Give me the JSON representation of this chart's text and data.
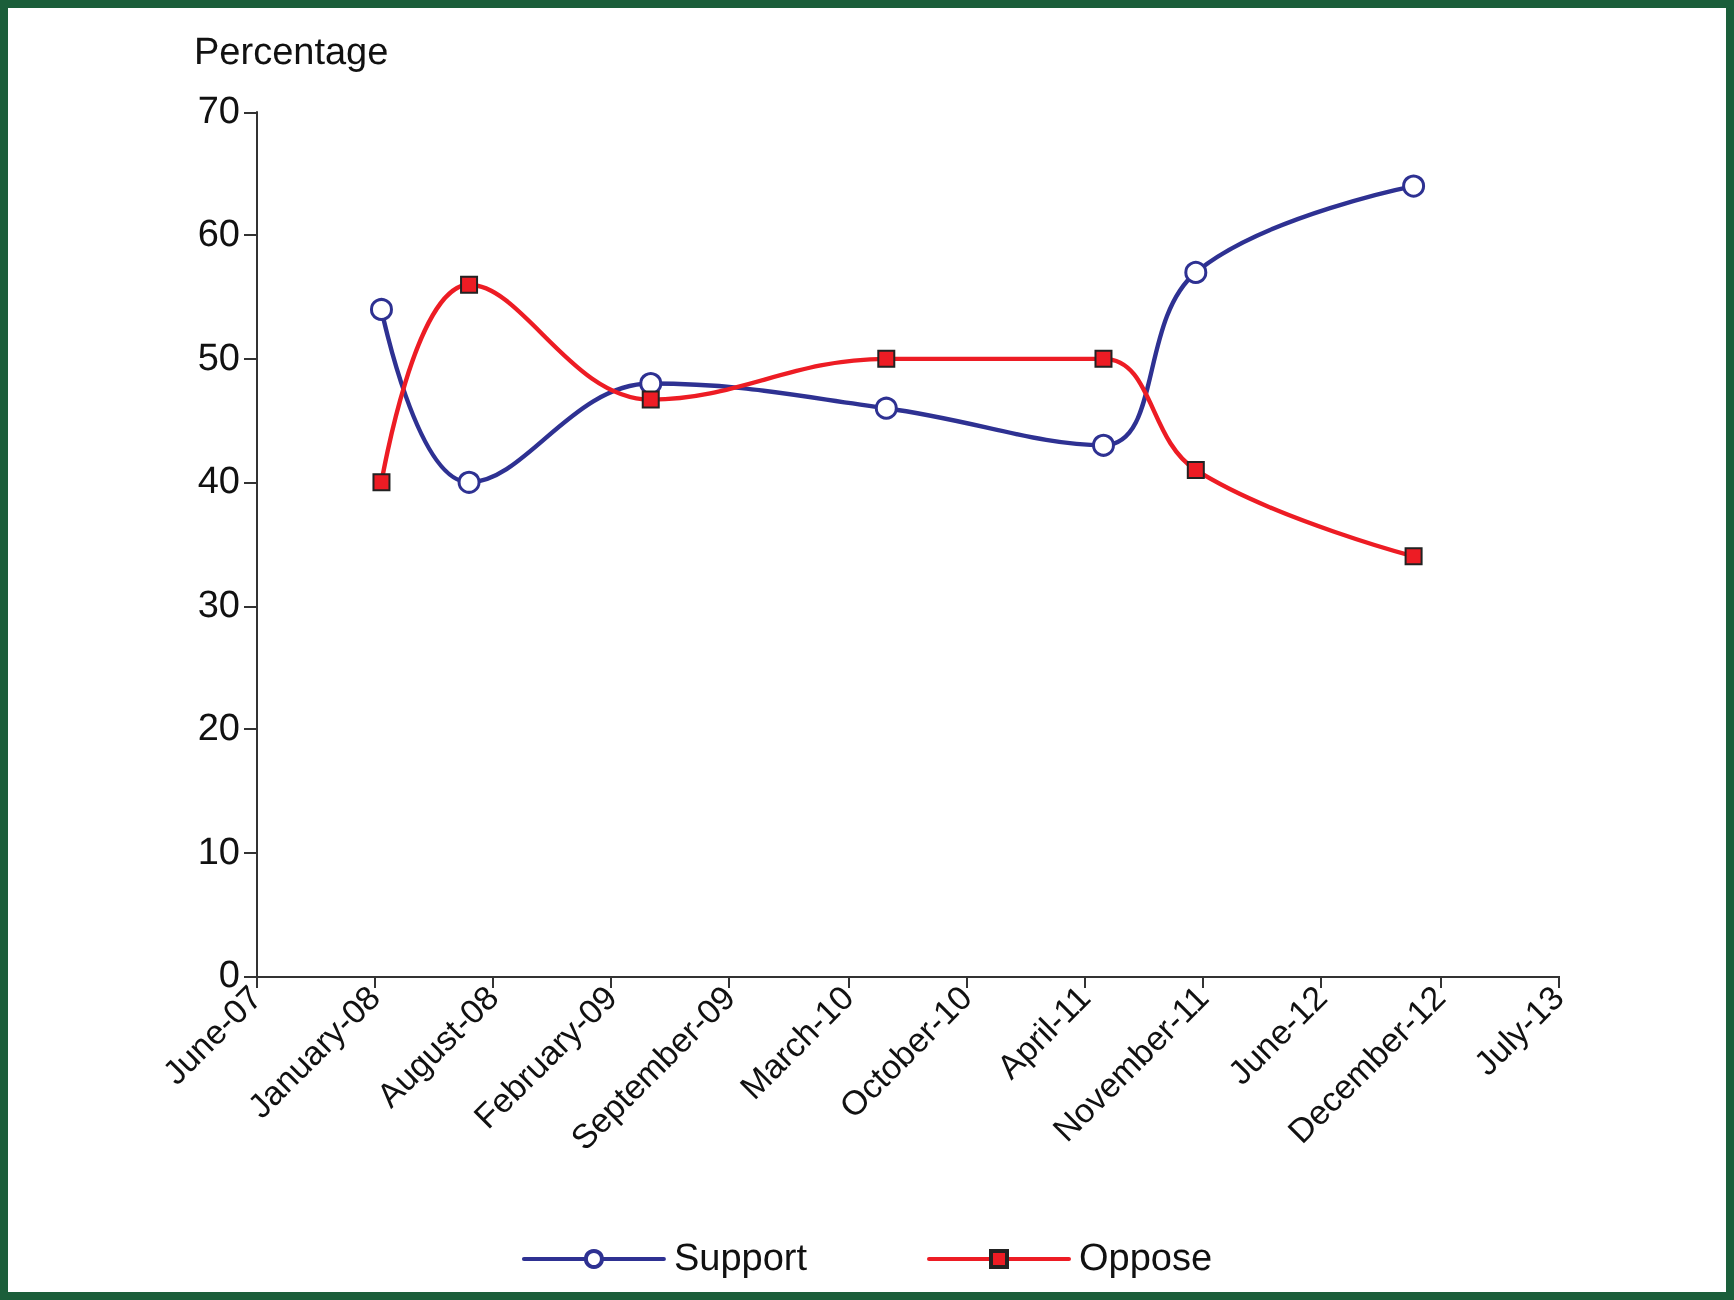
{
  "chart_data": {
    "type": "line",
    "ylabel": "Percentage",
    "x": [
      "2008-01-26",
      "2008-06-22",
      "2009-04-25",
      "2010-05-28",
      "2011-05-30",
      "2011-11-02",
      "2012-11-04"
    ],
    "series": [
      {
        "name": "Support",
        "color": "#2e3192",
        "marker": "circle",
        "values": [
          54,
          40,
          48,
          46,
          43,
          57,
          64
        ]
      },
      {
        "name": "Oppose",
        "color": "#ed1c24",
        "marker": "square",
        "values": [
          40,
          56,
          46.7,
          50,
          50,
          41,
          34
        ]
      }
    ],
    "xlim": [
      "2007-06-28",
      "2013-07-06"
    ],
    "xticks": [
      {
        "value": "2007-06-28",
        "label": "June-07"
      },
      {
        "value": "2008-01-14",
        "label": "January-08"
      },
      {
        "value": "2008-08-01",
        "label": "August-08"
      },
      {
        "value": "2009-02-17",
        "label": "February-09"
      },
      {
        "value": "2009-09-05",
        "label": "September-09"
      },
      {
        "value": "2010-03-24",
        "label": "March-10"
      },
      {
        "value": "2010-10-10",
        "label": "October-10"
      },
      {
        "value": "2011-04-28",
        "label": "April-11"
      },
      {
        "value": "2011-11-14",
        "label": "November-11"
      },
      {
        "value": "2012-06-01",
        "label": "June-12"
      },
      {
        "value": "2012-12-18",
        "label": "December-12"
      },
      {
        "value": "2013-07-06",
        "label": "July-13"
      }
    ],
    "ylim": [
      0,
      70
    ],
    "yticks": [
      0,
      10,
      20,
      30,
      40,
      50,
      60,
      70
    ],
    "grid": false,
    "legend": "bottom",
    "line_style": "solid"
  }
}
